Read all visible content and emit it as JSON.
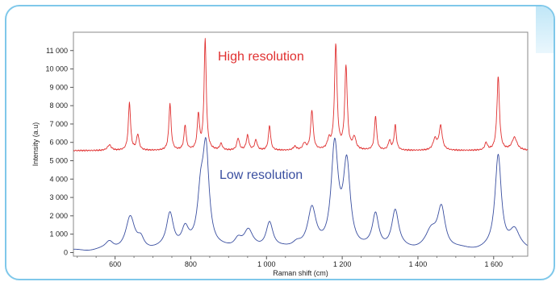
{
  "chart_data": {
    "type": "line",
    "title": "",
    "xlabel": "Raman shift (cm)",
    "ylabel": "Intensity (a.u)",
    "xlim": [
      490,
      1690
    ],
    "ylim": [
      -200,
      12000
    ],
    "x_ticks": [
      600,
      800,
      1000,
      1200,
      1400,
      1600
    ],
    "x_tick_labels": [
      "600",
      "800",
      "1 000",
      "1 200",
      "1 400",
      "1 600"
    ],
    "y_ticks": [
      0,
      1000,
      2000,
      3000,
      4000,
      5000,
      6000,
      7000,
      8000,
      9000,
      10000,
      11000
    ],
    "y_tick_labels": [
      "0",
      "1 000",
      "2 000",
      "3 000",
      "4 000",
      "5 000",
      "6 000",
      "7 000",
      "8 000",
      "9 000",
      "10 000",
      "11 000"
    ],
    "grid": false,
    "series": [
      {
        "name": "High resolution",
        "color": "#e03030",
        "baseline": 5550,
        "peaks": [
          {
            "x": 585,
            "height": 300,
            "width": 6
          },
          {
            "x": 638,
            "height": 2600,
            "width": 3.5
          },
          {
            "x": 660,
            "height": 850,
            "width": 4
          },
          {
            "x": 745,
            "height": 2550,
            "width": 3.5
          },
          {
            "x": 785,
            "height": 1350,
            "width": 3.5
          },
          {
            "x": 820,
            "height": 1900,
            "width": 3.5
          },
          {
            "x": 838,
            "height": 6000,
            "width": 3.5
          },
          {
            "x": 880,
            "height": 350,
            "width": 4
          },
          {
            "x": 925,
            "height": 650,
            "width": 4
          },
          {
            "x": 950,
            "height": 800,
            "width": 4
          },
          {
            "x": 972,
            "height": 550,
            "width": 4
          },
          {
            "x": 1008,
            "height": 1350,
            "width": 3.5
          },
          {
            "x": 1075,
            "height": 200,
            "width": 5
          },
          {
            "x": 1100,
            "height": 350,
            "width": 5
          },
          {
            "x": 1120,
            "height": 2150,
            "width": 4
          },
          {
            "x": 1165,
            "height": 500,
            "width": 5
          },
          {
            "x": 1183,
            "height": 5700,
            "width": 4
          },
          {
            "x": 1210,
            "height": 4500,
            "width": 4
          },
          {
            "x": 1232,
            "height": 650,
            "width": 5
          },
          {
            "x": 1288,
            "height": 1850,
            "width": 3.5
          },
          {
            "x": 1325,
            "height": 500,
            "width": 4
          },
          {
            "x": 1340,
            "height": 1350,
            "width": 3.5
          },
          {
            "x": 1445,
            "height": 600,
            "width": 6
          },
          {
            "x": 1460,
            "height": 1300,
            "width": 5
          },
          {
            "x": 1580,
            "height": 400,
            "width": 4
          },
          {
            "x": 1612,
            "height": 4000,
            "width": 4
          },
          {
            "x": 1655,
            "height": 700,
            "width": 8
          }
        ]
      },
      {
        "name": "Low resolution",
        "color": "#3a4fa0",
        "baseline": 100,
        "peaks": [
          {
            "x": 585,
            "height": 400,
            "width": 12
          },
          {
            "x": 640,
            "height": 1750,
            "width": 14
          },
          {
            "x": 668,
            "height": 500,
            "width": 10
          },
          {
            "x": 745,
            "height": 1900,
            "width": 11
          },
          {
            "x": 785,
            "height": 1000,
            "width": 11
          },
          {
            "x": 826,
            "height": 2500,
            "width": 10
          },
          {
            "x": 840,
            "height": 5200,
            "width": 10
          },
          {
            "x": 925,
            "height": 500,
            "width": 12
          },
          {
            "x": 952,
            "height": 950,
            "width": 14
          },
          {
            "x": 1008,
            "height": 1450,
            "width": 11
          },
          {
            "x": 1080,
            "height": 300,
            "width": 14
          },
          {
            "x": 1120,
            "height": 2100,
            "width": 13
          },
          {
            "x": 1180,
            "height": 5500,
            "width": 11
          },
          {
            "x": 1212,
            "height": 4500,
            "width": 11
          },
          {
            "x": 1288,
            "height": 1800,
            "width": 10
          },
          {
            "x": 1340,
            "height": 2050,
            "width": 11
          },
          {
            "x": 1435,
            "height": 900,
            "width": 18
          },
          {
            "x": 1462,
            "height": 2200,
            "width": 12
          },
          {
            "x": 1612,
            "height": 5100,
            "width": 10
          },
          {
            "x": 1655,
            "height": 1000,
            "width": 16
          }
        ]
      }
    ]
  }
}
